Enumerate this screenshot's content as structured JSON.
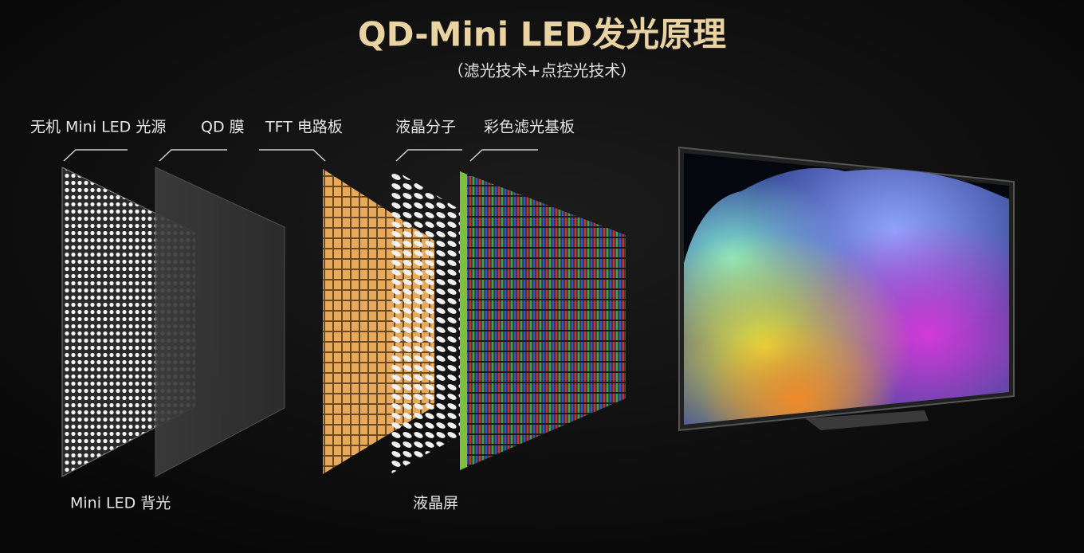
{
  "header": {
    "title": "QD-Mini LED发光原理",
    "subtitle": "（滤光技术+点控光技术）"
  },
  "layers": [
    {
      "label": "无机 Mini LED 光源"
    },
    {
      "label": "QD 膜"
    },
    {
      "label": "TFT 电路板"
    },
    {
      "label": "液晶分子"
    },
    {
      "label": "彩色滤光基板"
    }
  ],
  "groups": [
    {
      "label": "Mini LED 背光"
    },
    {
      "label": "液晶屏"
    }
  ]
}
